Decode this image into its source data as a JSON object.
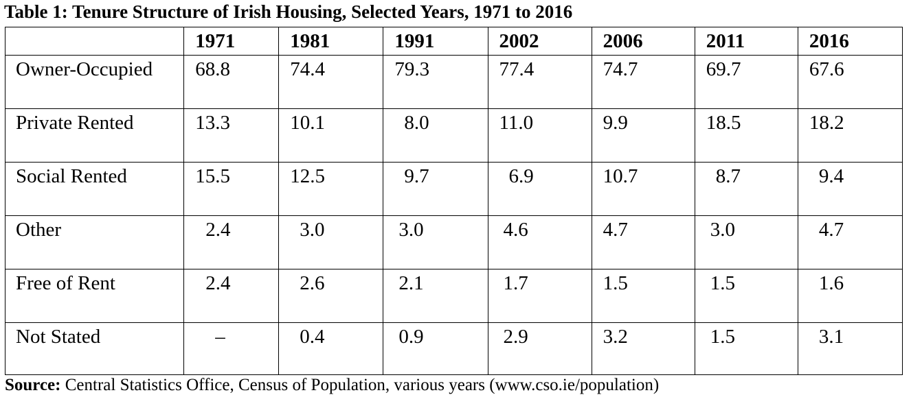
{
  "title": "Table 1: Tenure Structure of Irish Housing, Selected Years, 1971 to 2016",
  "table": {
    "columns": [
      "1971",
      "1981",
      "1991",
      "2002",
      "2006",
      "2011",
      "2016"
    ],
    "rows": [
      {
        "label": "Owner-Occupied",
        "values": [
          "68.8",
          "74.4",
          "79.3",
          "77.4",
          "74.7",
          "69.7",
          "67.6"
        ]
      },
      {
        "label": "Private Rented",
        "values": [
          "13.3",
          "10.1",
          "8.0",
          "11.0",
          "9.9",
          "18.5",
          "18.2"
        ]
      },
      {
        "label": "Social Rented",
        "values": [
          "15.5",
          "12.5",
          "9.7",
          "6.9",
          "10.7",
          "8.7",
          "9.4"
        ]
      },
      {
        "label": "Other",
        "values": [
          "2.4",
          "3.0",
          "3.0",
          "4.6",
          "4.7",
          "3.0",
          "4.7"
        ]
      },
      {
        "label": "Free of Rent",
        "values": [
          "2.4",
          "2.6",
          "2.1",
          "1.7",
          "1.5",
          "1.5",
          "1.6"
        ]
      },
      {
        "label": "Not Stated",
        "values": [
          "–",
          "0.4",
          "0.9",
          "2.9",
          "3.2",
          "1.5",
          "3.1"
        ]
      }
    ]
  },
  "source": {
    "label": "Source:",
    "text": " Central Statistics Office, Census of Population, various years (www.cso.ie/population)"
  }
}
